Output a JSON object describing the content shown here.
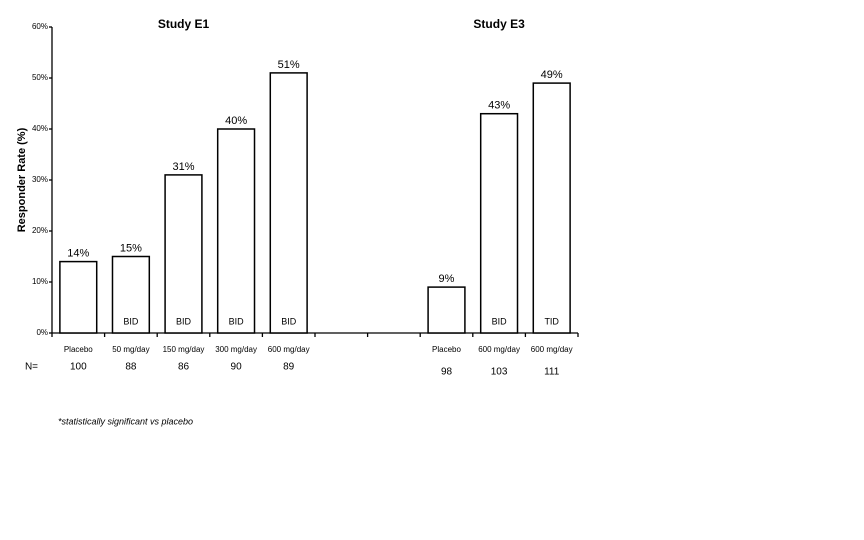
{
  "chart_data": {
    "type": "bar",
    "y_label": "Responder Rate (%)",
    "ylim": [
      0,
      60
    ],
    "yticks": [
      {
        "value": 0,
        "label": "0%"
      },
      {
        "value": 10,
        "label": "10%"
      },
      {
        "value": 20,
        "label": "20%"
      },
      {
        "value": 30,
        "label": "30%"
      },
      {
        "value": 40,
        "label": "40%"
      },
      {
        "value": 50,
        "label": "50%"
      },
      {
        "value": 60,
        "label": "60%"
      }
    ],
    "n_label": "N=",
    "color": "#ffffff",
    "panels": [
      {
        "title": "Study E1",
        "categories": [
          "Placebo",
          "50 mg/day",
          "150 mg/day",
          "300 mg/day",
          "600 mg/day"
        ],
        "values": [
          14,
          15,
          31,
          40,
          51
        ],
        "value_labels": [
          "14%",
          "15%",
          "31%",
          "40%",
          "51%"
        ],
        "bar_labels": [
          null,
          "BID",
          "BID",
          "BID",
          "BID"
        ],
        "n": [
          100,
          88,
          86,
          90,
          89
        ]
      },
      {
        "title": "Study E3",
        "categories": [
          "Placebo",
          "600 mg/day",
          "600 mg/day"
        ],
        "values": [
          9,
          43,
          49
        ],
        "value_labels": [
          "9%",
          "43%",
          "49%"
        ],
        "bar_labels": [
          null,
          "BID",
          "TID"
        ],
        "n": [
          98,
          103,
          111
        ]
      }
    ],
    "footnote": "*statistically significant vs placebo"
  }
}
